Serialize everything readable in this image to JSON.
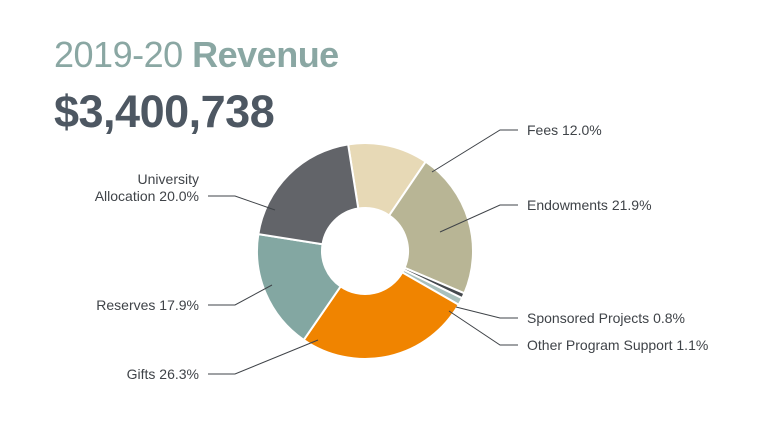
{
  "header": {
    "title_year": "2019-20",
    "title_word": "Revenue",
    "total": "$3,400,738"
  },
  "chart_data": {
    "type": "pie",
    "donut": true,
    "start_angle_deg": -9,
    "slices": [
      {
        "label": "Fees 12.0%",
        "value": 12.0,
        "color": "#e7d9b6"
      },
      {
        "label": "Endowments 21.9%",
        "value": 21.9,
        "color": "#b8b595"
      },
      {
        "label": "Sponsored Projects 0.8%",
        "value": 0.8,
        "color": "#45494e"
      },
      {
        "label": "Other Program Support 1.1%",
        "value": 1.1,
        "color": "#a9c0bc"
      },
      {
        "label": "Gifts 26.3%",
        "value": 26.3,
        "color": "#f08400"
      },
      {
        "label": "Reserves 17.9%",
        "value": 17.9,
        "color": "#83a7a2"
      },
      {
        "label": "University Allocation 20.0%",
        "lines": [
          "University",
          "Allocation 20.0%"
        ],
        "value": 20.0,
        "color": "#626469"
      }
    ]
  }
}
